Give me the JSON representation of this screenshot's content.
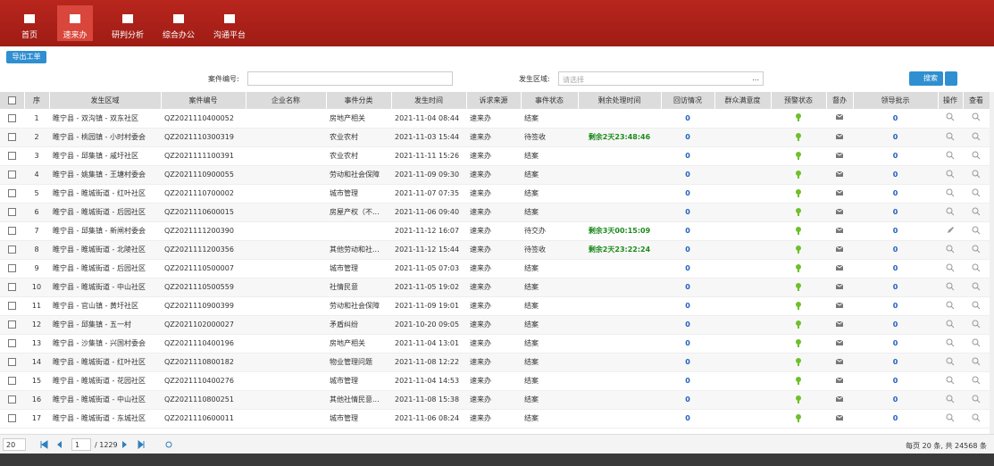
{
  "nav": [
    "首页",
    "速来办",
    "研判分析",
    "综合办公",
    "沟通平台"
  ],
  "toolbar": {
    "export": "导出工单"
  },
  "search": {
    "case_label": "案件编号:",
    "area_label": "发生区域:",
    "area_placeholder": "请选择",
    "area_more": "...",
    "button": "搜索"
  },
  "table": {
    "columns": [
      "序",
      "发生区域",
      "案件编号",
      "企业名称",
      "事件分类",
      "发生时间",
      "诉求来源",
      "事件状态",
      "剩余处理时间",
      "回访情况",
      "群众满意度",
      "预警状态",
      "督办",
      "领导批示",
      "操作",
      "查看"
    ],
    "rows": [
      {
        "no": 1,
        "area": "睢宁县 - 双沟镇 - 双东社区",
        "case": "QZ2021110400052",
        "category": "房地产相关",
        "time": "2021-11-04 08:44",
        "source": "速来办",
        "status": "结案",
        "visit": 0,
        "leader": 0
      },
      {
        "no": 2,
        "area": "睢宁县 - 桃园镇 - 小时村委会",
        "case": "QZ2021110300319",
        "category": "农业农村",
        "time": "2021-11-03 15:44",
        "source": "速来办",
        "status": "待签收",
        "remaining": "剩余2天23:48:46",
        "visit": 0,
        "leader": 0
      },
      {
        "no": 3,
        "area": "睢宁县 - 邱集镇 - 戚圩社区",
        "case": "QZ2021111100391",
        "category": "农业农村",
        "time": "2021-11-11 15:26",
        "source": "速来办",
        "status": "结案",
        "visit": 0,
        "leader": 0
      },
      {
        "no": 4,
        "area": "睢宁县 - 姚集镇 - 王塘村委会",
        "case": "QZ2021110900055",
        "category": "劳动和社会保障",
        "time": "2021-11-09 09:30",
        "source": "速来办",
        "status": "结案",
        "visit": 0,
        "leader": 0
      },
      {
        "no": 5,
        "area": "睢宁县 - 睢城街道 - 红叶社区",
        "case": "QZ2021110700002",
        "category": "城市管理",
        "time": "2021-11-07 07:35",
        "source": "速来办",
        "status": "结案",
        "visit": 0,
        "leader": 0
      },
      {
        "no": 6,
        "area": "睢宁县 - 睢城街道 - 后园社区",
        "case": "QZ2021110600015",
        "category": "房屋产权（不...",
        "time": "2021-11-06 09:40",
        "source": "速来办",
        "status": "结案",
        "visit": 0,
        "leader": 0
      },
      {
        "no": 7,
        "area": "睢宁县 - 邱集镇 - 新闸村委会",
        "case": "QZ2021111200390",
        "time": "2021-11-12 16:07",
        "source": "速来办",
        "status": "待交办",
        "remaining": "剩余3天00:15:09",
        "visit": 0,
        "leader": 0
      },
      {
        "no": 8,
        "area": "睢宁县 - 睢城街道 - 北陵社区",
        "case": "QZ2021111200356",
        "category": "其他劳动和社...",
        "time": "2021-11-12 15:44",
        "source": "速来办",
        "status": "待签收",
        "remaining": "剩余2天23:22:24",
        "visit": 0,
        "leader": 0
      },
      {
        "no": 9,
        "area": "睢宁县 - 睢城街道 - 后园社区",
        "case": "QZ2021110500007",
        "category": "城市管理",
        "time": "2021-11-05 07:03",
        "source": "速来办",
        "status": "结案",
        "visit": 0,
        "leader": 0
      },
      {
        "no": 10,
        "area": "睢宁县 - 睢城街道 - 中山社区",
        "case": "QZ2021110500559",
        "category": "社情民意",
        "time": "2021-11-05 19:02",
        "source": "速来办",
        "status": "结案",
        "visit": 0,
        "leader": 0
      },
      {
        "no": 11,
        "area": "睢宁县 - 官山镇 - 黄圩社区",
        "case": "QZ2021110900399",
        "category": "劳动和社会保障",
        "time": "2021-11-09 19:01",
        "source": "速来办",
        "status": "结案",
        "visit": 0,
        "leader": 0
      },
      {
        "no": 12,
        "area": "睢宁县 - 邱集镇 - 五一村",
        "case": "QZ2021102000027",
        "category": "矛盾纠纷",
        "time": "2021-10-20 09:05",
        "source": "速来办",
        "status": "结案",
        "visit": 0,
        "leader": 0
      },
      {
        "no": 13,
        "area": "睢宁县 - 沙集镇 - 兴国村委会",
        "case": "QZ2021110400196",
        "category": "房地产相关",
        "time": "2021-11-04 13:01",
        "source": "速来办",
        "status": "结案",
        "visit": 0,
        "leader": 0
      },
      {
        "no": 14,
        "area": "睢宁县 - 睢城街道 - 红叶社区",
        "case": "QZ2021110800182",
        "category": "物业管理问题",
        "time": "2021-11-08 12:22",
        "source": "速来办",
        "status": "结案",
        "visit": 0,
        "leader": 0
      },
      {
        "no": 15,
        "area": "睢宁县 - 睢城街道 - 花园社区",
        "case": "QZ2021110400276",
        "category": "城市管理",
        "time": "2021-11-04 14:53",
        "source": "速来办",
        "status": "结案",
        "visit": 0,
        "leader": 0
      },
      {
        "no": 16,
        "area": "睢宁县 - 睢城街道 - 中山社区",
        "case": "QZ2021110800251",
        "category": "其他社情民意...",
        "time": "2021-11-08 15:38",
        "source": "速来办",
        "status": "结案",
        "visit": 0,
        "leader": 0
      },
      {
        "no": 17,
        "area": "睢宁县 - 睢城街道 - 东城社区",
        "case": "QZ2021110600011",
        "category": "城市管理",
        "time": "2021-11-06 08:24",
        "source": "速来办",
        "status": "结案",
        "visit": 0,
        "leader": 0
      }
    ]
  },
  "pagination": {
    "page_size": "20",
    "page": "1",
    "total_pages": "/ 1229",
    "summary": "每页 20 条, 共 24568 条"
  }
}
